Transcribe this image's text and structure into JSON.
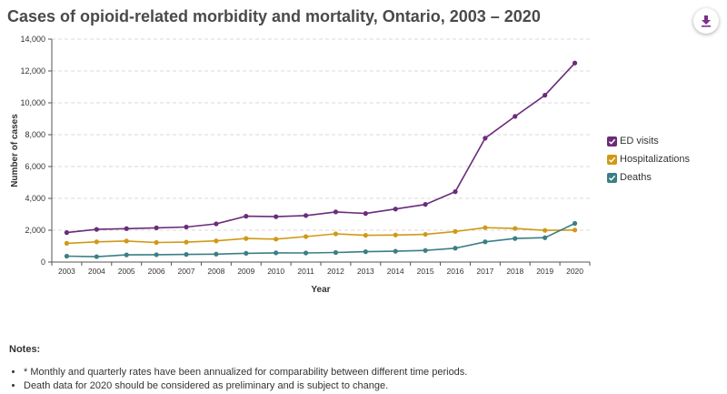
{
  "page": {
    "title": "Cases of opioid-related morbidity and mortality, Ontario, 2003 – 2020",
    "download_icon": "download-icon"
  },
  "chart_data": {
    "type": "line",
    "title": "Cases of opioid-related morbidity and mortality, Ontario, 2003 – 2020",
    "xlabel": "Year",
    "ylabel": "Number of cases",
    "ylim": [
      0,
      14000
    ],
    "yticks": [
      0,
      2000,
      4000,
      6000,
      8000,
      10000,
      12000,
      14000
    ],
    "ytick_labels": [
      "0",
      "2,000",
      "4,000",
      "6,000",
      "8,000",
      "10,000",
      "12,000",
      "14,000"
    ],
    "categories": [
      "2003",
      "2004",
      "2005",
      "2006",
      "2007",
      "2008",
      "2009",
      "2010",
      "2011",
      "2012",
      "2013",
      "2014",
      "2015",
      "2016",
      "2017",
      "2018",
      "2019",
      "2020"
    ],
    "grid": "horizontal dashed",
    "legend_position": "right",
    "series": [
      {
        "name": "ED visits",
        "color": "#6b2c7a",
        "values": [
          1850,
          2050,
          2100,
          2150,
          2200,
          2400,
          2880,
          2850,
          2920,
          3150,
          3050,
          3330,
          3620,
          4420,
          7780,
          9150,
          10480,
          12500
        ]
      },
      {
        "name": "Hospitalizations",
        "color": "#cf9a16",
        "values": [
          1180,
          1270,
          1320,
          1230,
          1250,
          1330,
          1480,
          1440,
          1600,
          1770,
          1680,
          1700,
          1740,
          1920,
          2160,
          2110,
          1990,
          2010
        ]
      },
      {
        "name": "Deaths",
        "color": "#3b7f85",
        "values": [
          370,
          340,
          450,
          460,
          480,
          500,
          550,
          580,
          570,
          600,
          650,
          680,
          730,
          870,
          1270,
          1480,
          1530,
          2430
        ]
      }
    ]
  },
  "notes": {
    "heading": "Notes:",
    "items": [
      "* Monthly and quarterly rates have been annualized for comparability between different time periods.",
      "Death data for 2020 should be considered as preliminary and is subject to change."
    ]
  }
}
